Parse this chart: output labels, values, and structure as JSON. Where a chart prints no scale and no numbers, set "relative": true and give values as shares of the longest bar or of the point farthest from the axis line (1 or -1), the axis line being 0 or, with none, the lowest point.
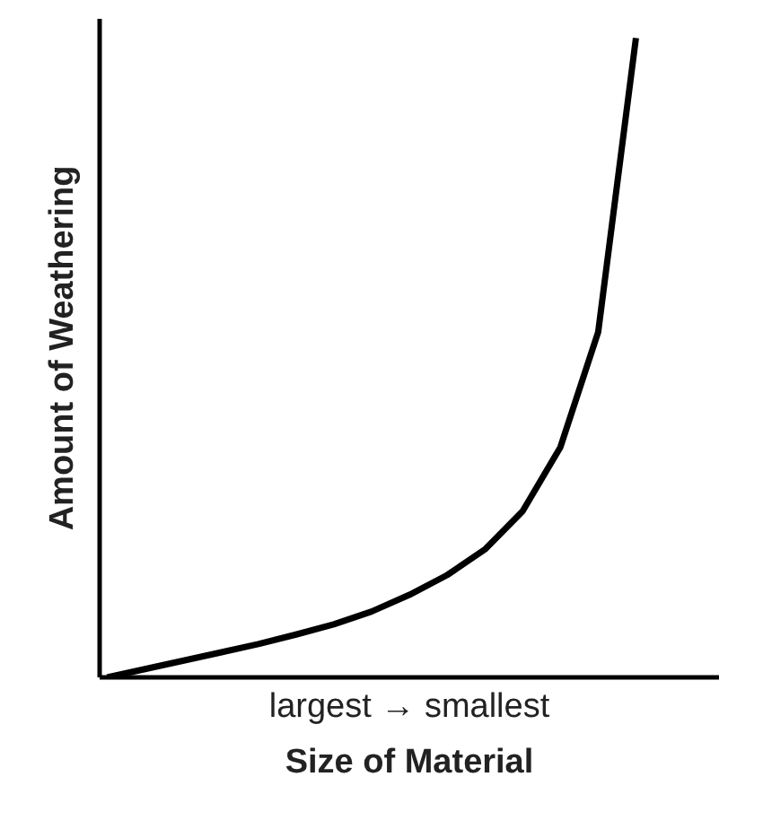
{
  "chart_data": {
    "type": "line",
    "relative": true,
    "xlabel": "Size of Material",
    "ylabel": "Amount of Weathering",
    "categories": [
      null,
      null,
      null,
      null,
      null,
      null,
      null,
      null,
      null,
      null,
      null,
      null,
      null,
      null,
      null
    ],
    "series": [
      {
        "color": "#000000",
        "values": [
          0,
          0.013,
          0.026,
          0.039,
          0.052,
          0.067,
          0.083,
          0.103,
          0.129,
          0.16,
          0.2,
          0.26,
          0.36,
          0.54,
          1
        ]
      }
    ],
    "annotations": [
      "largest → smallest"
    ],
    "grid": false,
    "marker": "none",
    "line_style": "solid"
  }
}
